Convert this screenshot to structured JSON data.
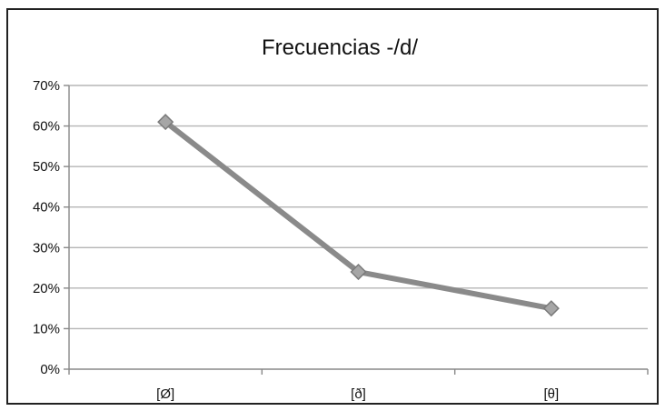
{
  "chart_data": {
    "type": "line",
    "title": "Frecuencias -/d/",
    "xlabel": "",
    "ylabel": "",
    "categories": [
      "[Ø]",
      "[ð]",
      "[θ]"
    ],
    "series": [
      {
        "values": [
          0.61,
          0.24,
          0.15
        ]
      }
    ],
    "ylim": [
      0,
      0.7
    ],
    "yticks": [
      0,
      0.1,
      0.2,
      0.3,
      0.4,
      0.5,
      0.6,
      0.7
    ],
    "ytick_labels": [
      "0%",
      "10%",
      "20%",
      "30%",
      "40%",
      "50%",
      "60%",
      "70%"
    ],
    "grid": true,
    "legend": "none",
    "colors": {
      "line": "#8a8a8a",
      "marker": "#a6a6a6",
      "marker_stroke": "#7a7a7a",
      "grid": "#b5b5b5",
      "axis": "#888888"
    }
  }
}
